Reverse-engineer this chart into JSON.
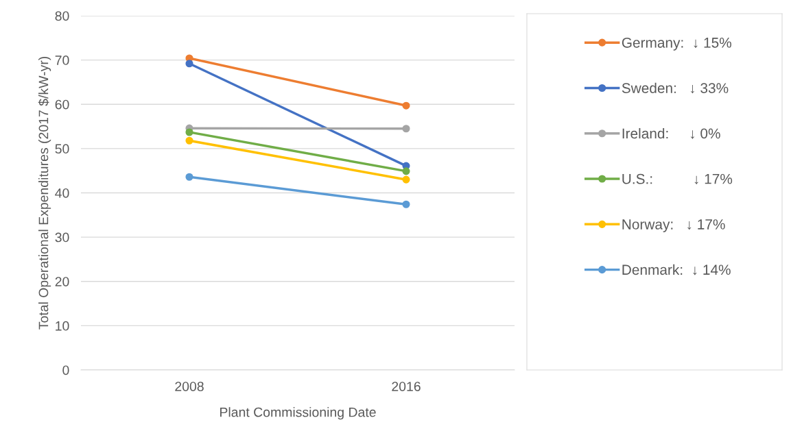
{
  "chart_data": {
    "type": "line",
    "xlabel": "Plant Commissioning Date",
    "ylabel": "Total Operational Expenditures (2017 $/kW-yr)",
    "categories": [
      "2008",
      "2016"
    ],
    "series": [
      {
        "name": "Germany:  ↓ 15%",
        "color": "#ed7d31",
        "values": [
          70.4,
          59.7
        ]
      },
      {
        "name": "Sweden:   ↓ 33%",
        "color": "#4472c4",
        "values": [
          69.2,
          46.1
        ]
      },
      {
        "name": "Ireland:     ↓ 0%",
        "color": "#a5a5a5",
        "values": [
          54.6,
          54.5
        ]
      },
      {
        "name": "U.S.:          ↓ 17%",
        "color": "#70ad47",
        "values": [
          53.7,
          44.9
        ]
      },
      {
        "name": "Norway:   ↓ 17%",
        "color": "#ffc000",
        "values": [
          51.8,
          43.0
        ]
      },
      {
        "name": "Denmark:  ↓ 14%",
        "color": "#5b9bd5",
        "values": [
          43.6,
          37.4
        ]
      }
    ],
    "ylim": [
      0,
      80
    ],
    "yticks": [
      0,
      10,
      20,
      30,
      40,
      50,
      60,
      70,
      80
    ],
    "grid": "y",
    "legend": "right",
    "marker": "circle",
    "line_style": "solid"
  }
}
